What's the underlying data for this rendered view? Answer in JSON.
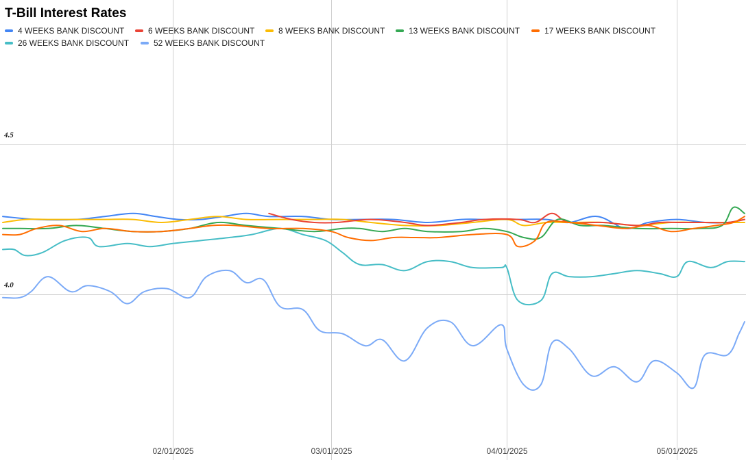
{
  "chart_data": {
    "type": "line",
    "title": "T-Bill Interest Rates",
    "xlabel": "",
    "ylabel": "",
    "x_tick_labels": [
      "02/01/2025",
      "03/01/2025",
      "04/01/2025",
      "05/01/2025"
    ],
    "x_range": [
      "2025-01-02",
      "2025-05-13"
    ],
    "ylim": [
      3.45,
      4.98
    ],
    "y_tick_labels": [
      "4.0",
      "4.5"
    ],
    "y_ticks": [
      4.0,
      4.5
    ],
    "grid": true,
    "legend_position": "top",
    "series": [
      {
        "name": "4 WEEKS BANK DISCOUNT",
        "color": "#4285f4",
        "points": [
          [
            "2025-01-02",
            4.26
          ],
          [
            "2025-01-08",
            4.25
          ],
          [
            "2025-01-15",
            4.25
          ],
          [
            "2025-01-20",
            4.26
          ],
          [
            "2025-01-25",
            4.27
          ],
          [
            "2025-01-29",
            4.26
          ],
          [
            "2025-02-02",
            4.25
          ],
          [
            "2025-02-06",
            4.25
          ],
          [
            "2025-02-10",
            4.26
          ],
          [
            "2025-02-14",
            4.27
          ],
          [
            "2025-02-18",
            4.26
          ],
          [
            "2025-02-24",
            4.26
          ],
          [
            "2025-03-01",
            4.25
          ],
          [
            "2025-03-06",
            4.25
          ],
          [
            "2025-03-12",
            4.25
          ],
          [
            "2025-03-18",
            4.24
          ],
          [
            "2025-03-24",
            4.25
          ],
          [
            "2025-03-28",
            4.25
          ],
          [
            "2025-04-03",
            4.25
          ],
          [
            "2025-04-08",
            4.25
          ],
          [
            "2025-04-12",
            4.24
          ],
          [
            "2025-04-17",
            4.26
          ],
          [
            "2025-04-22",
            4.22
          ],
          [
            "2025-04-26",
            4.24
          ],
          [
            "2025-05-01",
            4.25
          ],
          [
            "2025-05-06",
            4.24
          ],
          [
            "2025-05-10",
            4.24
          ],
          [
            "2025-05-13",
            4.25
          ]
        ]
      },
      {
        "name": "6 WEEKS BANK DISCOUNT",
        "color": "#ea4335",
        "points": [
          [
            "2025-02-18",
            4.27
          ],
          [
            "2025-02-22",
            4.25
          ],
          [
            "2025-02-26",
            4.24
          ],
          [
            "2025-03-02",
            4.24
          ],
          [
            "2025-03-08",
            4.25
          ],
          [
            "2025-03-14",
            4.24
          ],
          [
            "2025-03-18",
            4.23
          ],
          [
            "2025-03-24",
            4.24
          ],
          [
            "2025-03-28",
            4.25
          ],
          [
            "2025-04-03",
            4.25
          ],
          [
            "2025-04-06",
            4.24
          ],
          [
            "2025-04-09",
            4.27
          ],
          [
            "2025-04-12",
            4.24
          ],
          [
            "2025-04-18",
            4.24
          ],
          [
            "2025-04-24",
            4.23
          ],
          [
            "2025-04-28",
            4.24
          ],
          [
            "2025-05-02",
            4.24
          ],
          [
            "2025-05-06",
            4.24
          ],
          [
            "2025-05-10",
            4.24
          ],
          [
            "2025-05-13",
            4.25
          ]
        ]
      },
      {
        "name": "8 WEEKS BANK DISCOUNT",
        "color": "#fbbc04",
        "points": [
          [
            "2025-01-02",
            4.24
          ],
          [
            "2025-01-06",
            4.25
          ],
          [
            "2025-01-10",
            4.25
          ],
          [
            "2025-01-15",
            4.25
          ],
          [
            "2025-01-20",
            4.25
          ],
          [
            "2025-01-25",
            4.25
          ],
          [
            "2025-01-30",
            4.24
          ],
          [
            "2025-02-04",
            4.25
          ],
          [
            "2025-02-09",
            4.26
          ],
          [
            "2025-02-14",
            4.25
          ],
          [
            "2025-02-20",
            4.25
          ],
          [
            "2025-02-26",
            4.25
          ],
          [
            "2025-03-03",
            4.25
          ],
          [
            "2025-03-08",
            4.24
          ],
          [
            "2025-03-14",
            4.23
          ],
          [
            "2025-03-20",
            4.23
          ],
          [
            "2025-03-26",
            4.24
          ],
          [
            "2025-04-01",
            4.25
          ],
          [
            "2025-04-04",
            4.23
          ],
          [
            "2025-04-08",
            4.24
          ],
          [
            "2025-04-12",
            4.24
          ],
          [
            "2025-04-18",
            4.24
          ],
          [
            "2025-04-24",
            4.23
          ],
          [
            "2025-04-30",
            4.24
          ],
          [
            "2025-05-06",
            4.24
          ],
          [
            "2025-05-10",
            4.24
          ],
          [
            "2025-05-13",
            4.24
          ]
        ]
      },
      {
        "name": "13 WEEKS BANK DISCOUNT",
        "color": "#34a853",
        "points": [
          [
            "2025-01-02",
            4.22
          ],
          [
            "2025-01-05",
            4.22
          ],
          [
            "2025-01-10",
            4.22
          ],
          [
            "2025-01-15",
            4.23
          ],
          [
            "2025-01-20",
            4.22
          ],
          [
            "2025-01-25",
            4.21
          ],
          [
            "2025-01-30",
            4.21
          ],
          [
            "2025-02-04",
            4.22
          ],
          [
            "2025-02-09",
            4.24
          ],
          [
            "2025-02-14",
            4.23
          ],
          [
            "2025-02-20",
            4.22
          ],
          [
            "2025-02-26",
            4.21
          ],
          [
            "2025-03-03",
            4.22
          ],
          [
            "2025-03-06",
            4.22
          ],
          [
            "2025-03-10",
            4.21
          ],
          [
            "2025-03-14",
            4.22
          ],
          [
            "2025-03-18",
            4.21
          ],
          [
            "2025-03-24",
            4.21
          ],
          [
            "2025-03-28",
            4.22
          ],
          [
            "2025-04-01",
            4.21
          ],
          [
            "2025-04-04",
            4.19
          ],
          [
            "2025-04-07",
            4.19
          ],
          [
            "2025-04-10",
            4.25
          ],
          [
            "2025-04-14",
            4.23
          ],
          [
            "2025-04-18",
            4.23
          ],
          [
            "2025-04-24",
            4.22
          ],
          [
            "2025-04-30",
            4.22
          ],
          [
            "2025-05-05",
            4.22
          ],
          [
            "2025-05-09",
            4.23
          ],
          [
            "2025-05-11",
            4.29
          ],
          [
            "2025-05-13",
            4.27
          ]
        ]
      },
      {
        "name": "17 WEEKS BANK DISCOUNT",
        "color": "#ff6d01",
        "points": [
          [
            "2025-01-02",
            4.2
          ],
          [
            "2025-01-05",
            4.2
          ],
          [
            "2025-01-08",
            4.22
          ],
          [
            "2025-01-12",
            4.23
          ],
          [
            "2025-01-16",
            4.21
          ],
          [
            "2025-01-20",
            4.22
          ],
          [
            "2025-01-25",
            4.21
          ],
          [
            "2025-01-30",
            4.21
          ],
          [
            "2025-02-04",
            4.22
          ],
          [
            "2025-02-08",
            4.23
          ],
          [
            "2025-02-12",
            4.23
          ],
          [
            "2025-02-18",
            4.22
          ],
          [
            "2025-02-24",
            4.22
          ],
          [
            "2025-03-01",
            4.21
          ],
          [
            "2025-03-04",
            4.19
          ],
          [
            "2025-03-08",
            4.18
          ],
          [
            "2025-03-12",
            4.19
          ],
          [
            "2025-03-16",
            4.19
          ],
          [
            "2025-03-20",
            4.19
          ],
          [
            "2025-03-26",
            4.2
          ],
          [
            "2025-04-01",
            4.2
          ],
          [
            "2025-04-03",
            4.16
          ],
          [
            "2025-04-06",
            4.18
          ],
          [
            "2025-04-08",
            4.24
          ],
          [
            "2025-04-12",
            4.24
          ],
          [
            "2025-04-17",
            4.23
          ],
          [
            "2025-04-22",
            4.22
          ],
          [
            "2025-04-26",
            4.23
          ],
          [
            "2025-04-30",
            4.21
          ],
          [
            "2025-05-04",
            4.22
          ],
          [
            "2025-05-08",
            4.23
          ],
          [
            "2025-05-11",
            4.24
          ],
          [
            "2025-05-13",
            4.26
          ]
        ]
      },
      {
        "name": "26 WEEKS BANK DISCOUNT",
        "color": "#46bdc6",
        "points": [
          [
            "2025-01-02",
            4.15
          ],
          [
            "2025-01-04",
            4.15
          ],
          [
            "2025-01-06",
            4.13
          ],
          [
            "2025-01-09",
            4.14
          ],
          [
            "2025-01-13",
            4.18
          ],
          [
            "2025-01-17",
            4.19
          ],
          [
            "2025-01-19",
            4.16
          ],
          [
            "2025-01-24",
            4.17
          ],
          [
            "2025-01-28",
            4.16
          ],
          [
            "2025-02-01",
            4.17
          ],
          [
            "2025-02-06",
            4.18
          ],
          [
            "2025-02-11",
            4.19
          ],
          [
            "2025-02-15",
            4.2
          ],
          [
            "2025-02-20",
            4.22
          ],
          [
            "2025-02-24",
            4.2
          ],
          [
            "2025-02-28",
            4.18
          ],
          [
            "2025-03-03",
            4.14
          ],
          [
            "2025-03-06",
            4.1
          ],
          [
            "2025-03-10",
            4.1
          ],
          [
            "2025-03-14",
            4.08
          ],
          [
            "2025-03-18",
            4.11
          ],
          [
            "2025-03-22",
            4.11
          ],
          [
            "2025-03-26",
            4.09
          ],
          [
            "2025-03-31",
            4.09
          ],
          [
            "2025-04-01",
            4.09
          ],
          [
            "2025-04-03",
            3.98
          ],
          [
            "2025-04-07",
            3.98
          ],
          [
            "2025-04-09",
            4.07
          ],
          [
            "2025-04-12",
            4.06
          ],
          [
            "2025-04-16",
            4.06
          ],
          [
            "2025-04-20",
            4.07
          ],
          [
            "2025-04-24",
            4.08
          ],
          [
            "2025-04-28",
            4.07
          ],
          [
            "2025-05-01",
            4.06
          ],
          [
            "2025-05-03",
            4.11
          ],
          [
            "2025-05-07",
            4.09
          ],
          [
            "2025-05-10",
            4.11
          ],
          [
            "2025-05-13",
            4.11
          ]
        ]
      },
      {
        "name": "52 WEEKS BANK DISCOUNT",
        "color": "#7baaf7",
        "points": [
          [
            "2025-01-02",
            3.99
          ],
          [
            "2025-01-05",
            3.99
          ],
          [
            "2025-01-07",
            4.01
          ],
          [
            "2025-01-10",
            4.06
          ],
          [
            "2025-01-14",
            4.01
          ],
          [
            "2025-01-17",
            4.03
          ],
          [
            "2025-01-21",
            4.01
          ],
          [
            "2025-01-24",
            3.97
          ],
          [
            "2025-01-27",
            4.01
          ],
          [
            "2025-01-31",
            4.02
          ],
          [
            "2025-02-04",
            3.99
          ],
          [
            "2025-02-07",
            4.06
          ],
          [
            "2025-02-11",
            4.08
          ],
          [
            "2025-02-14",
            4.04
          ],
          [
            "2025-02-17",
            4.05
          ],
          [
            "2025-02-20",
            3.96
          ],
          [
            "2025-02-24",
            3.95
          ],
          [
            "2025-02-27",
            3.88
          ],
          [
            "2025-03-03",
            3.87
          ],
          [
            "2025-03-07",
            3.83
          ],
          [
            "2025-03-10",
            3.85
          ],
          [
            "2025-03-14",
            3.78
          ],
          [
            "2025-03-18",
            3.89
          ],
          [
            "2025-03-22",
            3.91
          ],
          [
            "2025-03-26",
            3.83
          ],
          [
            "2025-03-31",
            3.9
          ],
          [
            "2025-04-01",
            3.82
          ],
          [
            "2025-04-04",
            3.7
          ],
          [
            "2025-04-07",
            3.7
          ],
          [
            "2025-04-09",
            3.84
          ],
          [
            "2025-04-12",
            3.82
          ],
          [
            "2025-04-16",
            3.73
          ],
          [
            "2025-04-20",
            3.76
          ],
          [
            "2025-04-24",
            3.71
          ],
          [
            "2025-04-27",
            3.78
          ],
          [
            "2025-05-01",
            3.74
          ],
          [
            "2025-05-04",
            3.69
          ],
          [
            "2025-05-06",
            3.8
          ],
          [
            "2025-05-10",
            3.8
          ],
          [
            "2025-05-12",
            3.87
          ],
          [
            "2025-05-13",
            3.91
          ]
        ]
      }
    ]
  }
}
